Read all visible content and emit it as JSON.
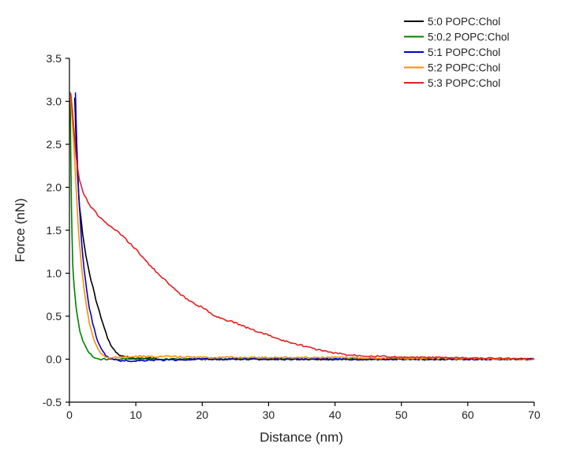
{
  "chart_data": {
    "type": "line",
    "title": "",
    "xlabel": "Distance (nm)",
    "ylabel": "Force (nN)",
    "xlim": [
      0,
      70
    ],
    "ylim": [
      -0.5,
      3.5
    ],
    "x_ticks": [
      0,
      10,
      20,
      30,
      40,
      50,
      60,
      70
    ],
    "x_tick_labels": [
      "0",
      "10",
      "20",
      "30",
      "40",
      "50",
      "60",
      "70"
    ],
    "y_ticks": [
      -0.5,
      0.0,
      0.5,
      1.0,
      1.5,
      2.0,
      2.5,
      3.0,
      3.5
    ],
    "y_tick_labels": [
      "-0.5",
      "0.0",
      "0.5",
      "1.0",
      "1.5",
      "2.0",
      "2.5",
      "3.0",
      "3.5"
    ],
    "grid": false,
    "legend_position": "top-right",
    "series": [
      {
        "name": "5:0 POPC:Chol",
        "color": "#000000",
        "points": [
          [
            0.8,
            3.05
          ],
          [
            1.1,
            2.3
          ],
          [
            1.5,
            1.8
          ],
          [
            2.0,
            1.45
          ],
          [
            2.5,
            1.2
          ],
          [
            3.0,
            1.0
          ],
          [
            3.5,
            0.85
          ],
          [
            4.0,
            0.68
          ],
          [
            4.5,
            0.55
          ],
          [
            5.0,
            0.42
          ],
          [
            5.5,
            0.3
          ],
          [
            6.0,
            0.2
          ],
          [
            6.5,
            0.13
          ],
          [
            7.0,
            0.08
          ],
          [
            7.5,
            0.05
          ],
          [
            8.0,
            0.03
          ],
          [
            9.0,
            0.02
          ],
          [
            10.0,
            0.01
          ],
          [
            12.0,
            0.01
          ],
          [
            15.0,
            0.0
          ],
          [
            20.0,
            0.0
          ],
          [
            25.0,
            0.0
          ],
          [
            30.0,
            0.0
          ],
          [
            40.0,
            0.0
          ],
          [
            50.0,
            0.0
          ],
          [
            60.0,
            0.0
          ],
          [
            70.0,
            0.0
          ]
        ]
      },
      {
        "name": "5:0.2 POPC:Chol",
        "color": "#008000",
        "points": [
          [
            0.1,
            3.1
          ],
          [
            0.2,
            2.4
          ],
          [
            0.3,
            1.8
          ],
          [
            0.4,
            1.4
          ],
          [
            0.5,
            1.1
          ],
          [
            0.7,
            0.85
          ],
          [
            1.0,
            0.6
          ],
          [
            1.3,
            0.45
          ],
          [
            1.6,
            0.32
          ],
          [
            2.0,
            0.22
          ],
          [
            2.5,
            0.13
          ],
          [
            3.0,
            0.07
          ],
          [
            3.5,
            0.03
          ],
          [
            4.0,
            0.01
          ],
          [
            4.5,
            0.0
          ],
          [
            6.0,
            0.0
          ],
          [
            10.0,
            0.0
          ],
          [
            20.0,
            0.0
          ],
          [
            30.0,
            0.0
          ],
          [
            40.0,
            0.0
          ],
          [
            50.0,
            0.0
          ],
          [
            60.0,
            0.0
          ],
          [
            70.0,
            0.0
          ]
        ]
      },
      {
        "name": "5:1 POPC:Chol",
        "color": "#0000cc",
        "points": [
          [
            0.9,
            3.1
          ],
          [
            1.1,
            2.5
          ],
          [
            1.4,
            1.9
          ],
          [
            1.8,
            1.4
          ],
          [
            2.2,
            1.05
          ],
          [
            2.6,
            0.8
          ],
          [
            3.0,
            0.6
          ],
          [
            3.5,
            0.42
          ],
          [
            4.0,
            0.27
          ],
          [
            4.5,
            0.16
          ],
          [
            5.0,
            0.09
          ],
          [
            5.5,
            0.04
          ],
          [
            6.0,
            0.01
          ],
          [
            7.0,
            -0.01
          ],
          [
            8.0,
            -0.02
          ],
          [
            10.0,
            -0.02
          ],
          [
            12.0,
            -0.01
          ],
          [
            15.0,
            -0.01
          ],
          [
            20.0,
            0.0
          ],
          [
            25.0,
            0.0
          ],
          [
            30.0,
            0.0
          ],
          [
            40.0,
            0.0
          ],
          [
            50.0,
            0.0
          ],
          [
            60.0,
            0.0
          ],
          [
            70.0,
            0.0
          ]
        ]
      },
      {
        "name": "5:2 POPC:Chol",
        "color": "#ff8c00",
        "points": [
          [
            0.0,
            3.1
          ],
          [
            0.2,
            3.0
          ],
          [
            0.5,
            2.7
          ],
          [
            0.8,
            2.3
          ],
          [
            1.1,
            1.85
          ],
          [
            1.4,
            1.45
          ],
          [
            1.8,
            1.1
          ],
          [
            2.2,
            0.82
          ],
          [
            2.6,
            0.6
          ],
          [
            3.0,
            0.42
          ],
          [
            3.5,
            0.27
          ],
          [
            4.0,
            0.16
          ],
          [
            4.5,
            0.09
          ],
          [
            5.0,
            0.05
          ],
          [
            5.5,
            0.03
          ],
          [
            6.0,
            0.02
          ],
          [
            8.0,
            0.02
          ],
          [
            10.0,
            0.03
          ],
          [
            15.0,
            0.03
          ],
          [
            20.0,
            0.02
          ],
          [
            30.0,
            0.02
          ],
          [
            40.0,
            0.02
          ],
          [
            50.0,
            0.01
          ],
          [
            60.0,
            0.01
          ],
          [
            70.0,
            0.0
          ]
        ]
      },
      {
        "name": "5:3 POPC:Chol",
        "color": "#e02020",
        "points": [
          [
            0.2,
            3.1
          ],
          [
            0.6,
            2.75
          ],
          [
            1.0,
            2.35
          ],
          [
            1.5,
            2.1
          ],
          [
            2.0,
            1.95
          ],
          [
            2.5,
            1.88
          ],
          [
            3.0,
            1.8
          ],
          [
            4.0,
            1.7
          ],
          [
            5.0,
            1.62
          ],
          [
            6.0,
            1.55
          ],
          [
            7.0,
            1.5
          ],
          [
            8.0,
            1.43
          ],
          [
            10.0,
            1.28
          ],
          [
            12.0,
            1.1
          ],
          [
            14.0,
            0.95
          ],
          [
            16.0,
            0.8
          ],
          [
            18.0,
            0.68
          ],
          [
            20.0,
            0.6
          ],
          [
            22.0,
            0.5
          ],
          [
            25.0,
            0.42
          ],
          [
            28.0,
            0.33
          ],
          [
            30.0,
            0.28
          ],
          [
            32.0,
            0.22
          ],
          [
            35.0,
            0.16
          ],
          [
            38.0,
            0.1
          ],
          [
            40.0,
            0.07
          ],
          [
            42.0,
            0.05
          ],
          [
            45.0,
            0.04
          ],
          [
            48.0,
            0.03
          ],
          [
            50.0,
            0.02
          ],
          [
            55.0,
            0.02
          ],
          [
            60.0,
            0.01
          ],
          [
            65.0,
            0.01
          ],
          [
            70.0,
            0.0
          ]
        ]
      }
    ]
  }
}
